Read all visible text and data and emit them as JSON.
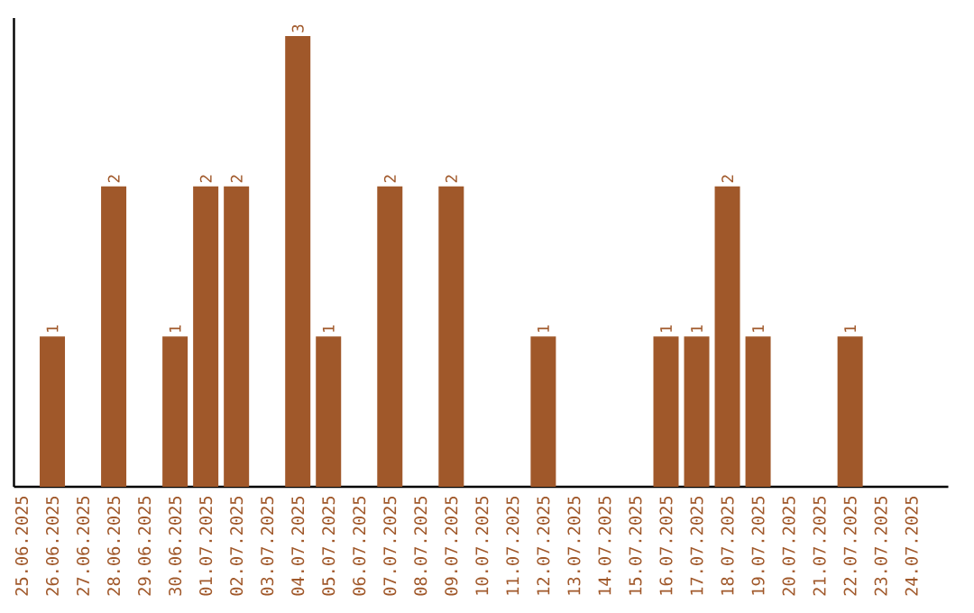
{
  "chart_data": {
    "type": "bar",
    "categories": [
      "25.06.2025",
      "26.06.2025",
      "27.06.2025",
      "28.06.2025",
      "29.06.2025",
      "30.06.2025",
      "01.07.2025",
      "02.07.2025",
      "03.07.2025",
      "04.07.2025",
      "05.07.2025",
      "06.07.2025",
      "07.07.2025",
      "08.07.2025",
      "09.07.2025",
      "10.07.2025",
      "11.07.2025",
      "12.07.2025",
      "13.07.2025",
      "14.07.2025",
      "15.07.2025",
      "16.07.2025",
      "17.07.2025",
      "18.07.2025",
      "19.07.2025",
      "20.07.2025",
      "21.07.2025",
      "22.07.2025",
      "23.07.2025",
      "24.07.2025"
    ],
    "values": [
      0,
      1,
      0,
      2,
      0,
      1,
      2,
      2,
      0,
      3,
      1,
      0,
      2,
      0,
      2,
      0,
      0,
      1,
      0,
      0,
      0,
      1,
      1,
      2,
      1,
      0,
      0,
      1,
      0,
      0
    ],
    "value_labels": [
      null,
      "1",
      null,
      "2",
      null,
      "1",
      "2",
      "2",
      null,
      "3",
      "1",
      null,
      "2",
      null,
      "2",
      null,
      null,
      "1",
      null,
      null,
      null,
      "1",
      "1",
      "2",
      "1",
      null,
      null,
      "1",
      null,
      null
    ],
    "color": "#a0582a",
    "tick_labels": "x",
    "grid": false
  }
}
